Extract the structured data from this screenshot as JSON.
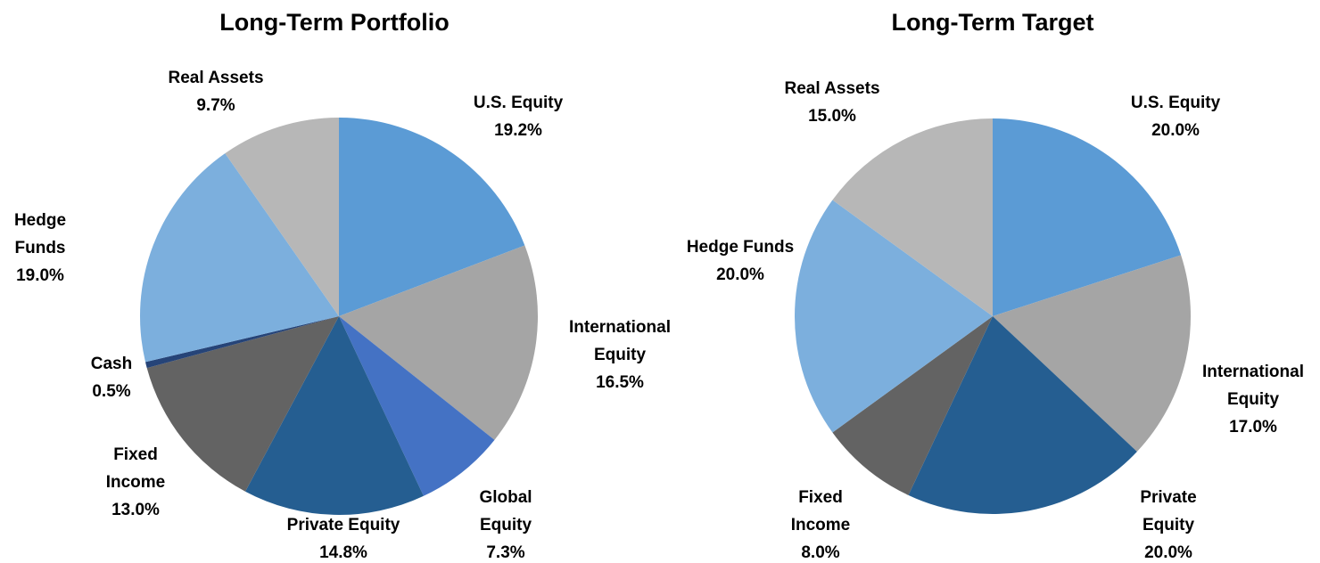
{
  "chart_data": [
    {
      "type": "pie",
      "title": "Long-Term Portfolio",
      "categories": [
        "U.S. Equity",
        "International Equity",
        "Global Equity",
        "Private Equity",
        "Fixed Income",
        "Cash",
        "Hedge Funds",
        "Real Assets"
      ],
      "values": [
        19.2,
        16.5,
        7.3,
        14.8,
        13.0,
        0.5,
        19.0,
        9.7
      ],
      "value_labels": [
        "19.2%",
        "16.5%",
        "7.3%",
        "14.8%",
        "13.0%",
        "0.5%",
        "19.0%",
        "9.7%"
      ],
      "colors": [
        "#5b9bd5",
        "#a5a5a5",
        "#4472c4",
        "#255e91",
        "#636363",
        "#264478",
        "#7cafdd",
        "#b7b7b7"
      ]
    },
    {
      "type": "pie",
      "title": "Long-Term Target",
      "categories": [
        "U.S. Equity",
        "International Equity",
        "Private Equity",
        "Fixed Income",
        "Hedge Funds",
        "Real Assets"
      ],
      "values": [
        20.0,
        17.0,
        20.0,
        8.0,
        20.0,
        15.0
      ],
      "value_labels": [
        "20.0%",
        "17.0%",
        "20.0%",
        "8.0%",
        "20.0%",
        "15.0%"
      ],
      "colors": [
        "#5b9bd5",
        "#a5a5a5",
        "#255e91",
        "#636363",
        "#7cafdd",
        "#b7b7b7"
      ]
    }
  ]
}
